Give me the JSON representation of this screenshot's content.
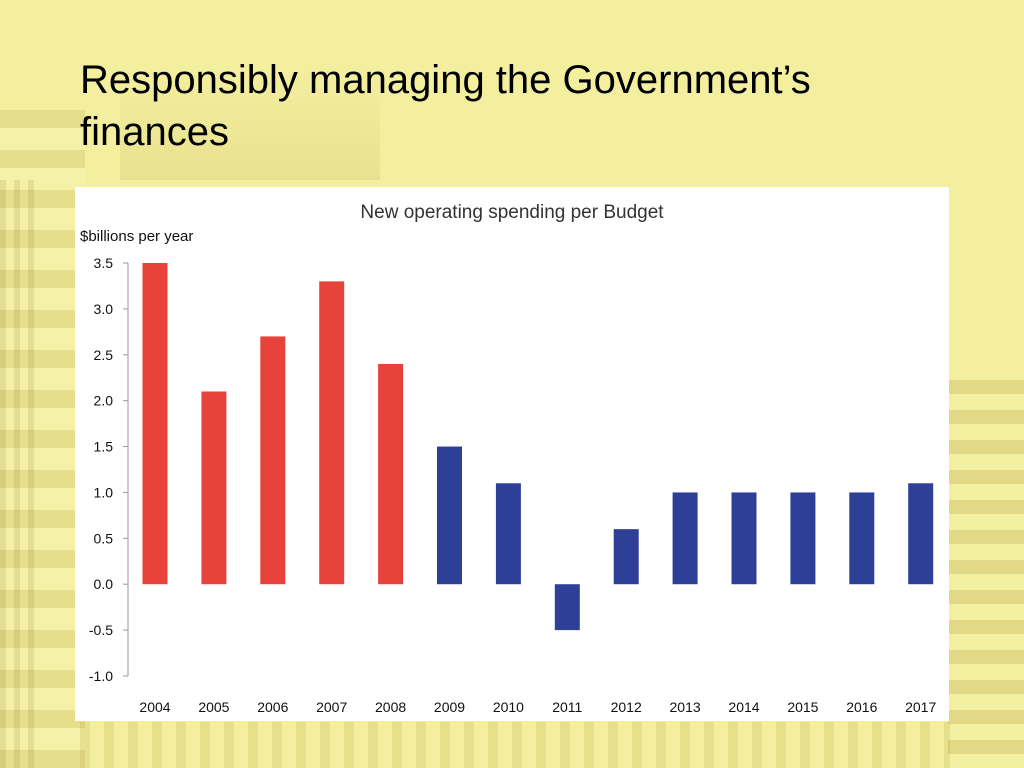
{
  "slide": {
    "title": "Responsibly managing the Government’s finances"
  },
  "chart_data": {
    "type": "bar",
    "title": "New operating spending per Budget",
    "ylabel": "$billions per year",
    "xlabel": "",
    "ylim": [
      -1.0,
      3.5
    ],
    "yticks": [
      "3.5",
      "3.0",
      "2.5",
      "2.0",
      "1.5",
      "1.0",
      "0.5",
      "0.0",
      "-0.5",
      "-1.0"
    ],
    "categories": [
      "2004",
      "2005",
      "2006",
      "2007",
      "2008",
      "2009",
      "2010",
      "2011",
      "2012",
      "2013",
      "2014",
      "2015",
      "2016",
      "2017"
    ],
    "values": [
      3.5,
      2.1,
      2.7,
      3.3,
      2.4,
      1.5,
      1.1,
      -0.5,
      0.6,
      1.0,
      1.0,
      1.0,
      1.0,
      1.1
    ],
    "colors": [
      "#e8433a",
      "#e8433a",
      "#e8433a",
      "#e8433a",
      "#e8433a",
      "#2e3f98",
      "#2e3f98",
      "#2e3f98",
      "#2e3f98",
      "#2e3f98",
      "#2e3f98",
      "#2e3f98",
      "#2e3f98",
      "#2e3f98"
    ],
    "grid": false,
    "legend": "none"
  }
}
